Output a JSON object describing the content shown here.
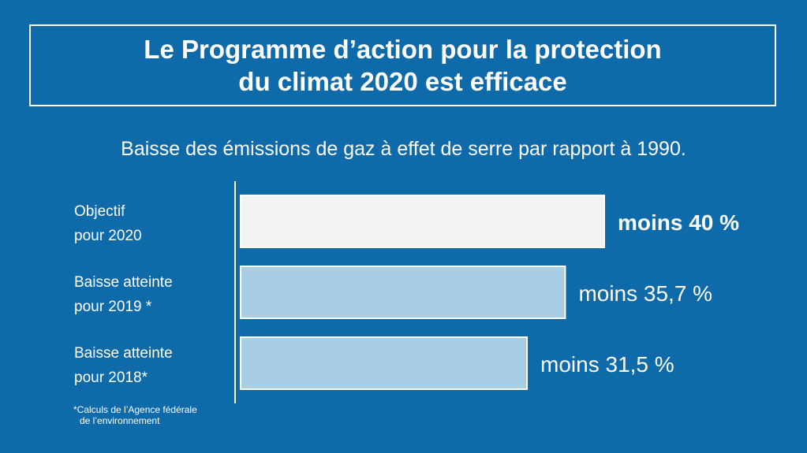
{
  "title": {
    "line1": "Le Programme d’action pour la protection",
    "line2": "du climat 2020 est efficace"
  },
  "subtitle": "Baisse des émissions de gaz à effet de serre par rapport à 1990.",
  "footnote": {
    "line1": "*Calculs de l’Agence fédérale",
    "line2": "de l’environnement"
  },
  "colors": {
    "background": "#0e6aa8",
    "target_bar": "#f3f3f3",
    "achieved_bar": "#a9cde3"
  },
  "chart_data": {
    "type": "bar",
    "orientation": "horizontal",
    "categories": [
      [
        "Objectif",
        "pour 2020"
      ],
      [
        "Baisse atteinte",
        "pour 2019 *"
      ],
      [
        "Baisse atteinte",
        "pour 2018*"
      ]
    ],
    "values": [
      40,
      35.7,
      31.5
    ],
    "unit": "%",
    "data_labels": [
      "moins 40 %",
      "moins 35,7 %",
      "moins 31,5 %"
    ],
    "xlim": [
      0,
      40
    ],
    "grid": false,
    "legend": "none"
  }
}
